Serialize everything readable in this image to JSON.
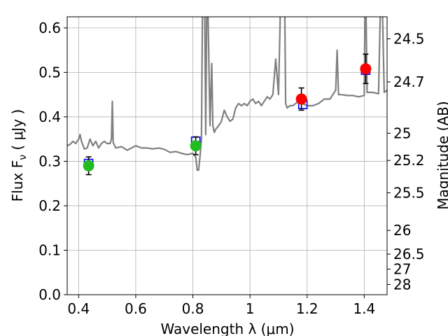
{
  "chart_data": {
    "type": "scatter",
    "xlabel": "Wavelength  λ (μm)",
    "ylabel": "Flux  F_ν  ( μJy )",
    "y2label": "Magnitude (AB)",
    "xlim": [
      0.36,
      1.48
    ],
    "ylim": [
      0.0,
      0.625
    ],
    "grid": true,
    "x_ticks": [
      0.4,
      0.6,
      0.8,
      1.0,
      1.2,
      1.4
    ],
    "x_tick_labels": [
      "0.4",
      "0.6",
      "0.8",
      "1",
      "1.2",
      "1.4"
    ],
    "y_ticks": [
      0.0,
      0.1,
      0.2,
      0.3,
      0.4,
      0.5,
      0.6
    ],
    "y_tick_labels": [
      "0.0",
      "0.1",
      "0.2",
      "0.3",
      "0.4",
      "0.5",
      "0.6"
    ],
    "y2_ticks": [
      24.5,
      24.7,
      25,
      25.2,
      25.5,
      26,
      26.5,
      27,
      28
    ],
    "y2_tick_labels": [
      "24.5",
      "24.7",
      "25",
      "25.2",
      "25.5",
      "26",
      "26.5",
      "27",
      "28"
    ],
    "model_spectrum": {
      "color": "#808080",
      "x": [
        0.36,
        0.37,
        0.38,
        0.39,
        0.4,
        0.405,
        0.41,
        0.42,
        0.43,
        0.44,
        0.45,
        0.46,
        0.47,
        0.48,
        0.49,
        0.5,
        0.51,
        0.515,
        0.518,
        0.521,
        0.53,
        0.55,
        0.57,
        0.6,
        0.62,
        0.64,
        0.66,
        0.68,
        0.7,
        0.72,
        0.74,
        0.76,
        0.78,
        0.8,
        0.81,
        0.815,
        0.82,
        0.825,
        0.83,
        0.835,
        0.84,
        0.845,
        0.85,
        0.86,
        0.866,
        0.87,
        0.875,
        0.88,
        0.89,
        0.9,
        0.91,
        0.92,
        0.93,
        0.94,
        0.95,
        0.96,
        0.97,
        0.98,
        0.99,
        1.0,
        1.01,
        1.02,
        1.03,
        1.04,
        1.05,
        1.06,
        1.07,
        1.08,
        1.09,
        1.1,
        1.11,
        1.12,
        1.125,
        1.13,
        1.14,
        1.15,
        1.16,
        1.17,
        1.18,
        1.19,
        1.2,
        1.22,
        1.24,
        1.26,
        1.28,
        1.3,
        1.305,
        1.31,
        1.32,
        1.34,
        1.36,
        1.38,
        1.4,
        1.404,
        1.41,
        1.43,
        1.45,
        1.46,
        1.47,
        1.48
      ],
      "y": [
        0.335,
        0.338,
        0.345,
        0.34,
        0.35,
        0.36,
        0.345,
        0.328,
        0.33,
        0.35,
        0.335,
        0.345,
        0.33,
        0.34,
        0.345,
        0.34,
        0.34,
        0.35,
        0.435,
        0.342,
        0.33,
        0.333,
        0.325,
        0.335,
        0.33,
        0.33,
        0.328,
        0.33,
        0.327,
        0.32,
        0.322,
        0.318,
        0.315,
        0.318,
        0.31,
        0.28,
        0.28,
        0.31,
        0.35,
        0.75,
        0.75,
        0.36,
        0.75,
        0.38,
        0.52,
        0.38,
        0.365,
        0.372,
        0.38,
        0.39,
        0.415,
        0.4,
        0.39,
        0.395,
        0.42,
        0.43,
        0.425,
        0.43,
        0.425,
        0.435,
        0.44,
        0.43,
        0.435,
        0.425,
        0.435,
        0.445,
        0.44,
        0.45,
        0.53,
        0.45,
        0.75,
        0.75,
        0.43,
        0.42,
        0.425,
        0.425,
        0.43,
        0.435,
        0.43,
        0.428,
        0.425,
        0.425,
        0.43,
        0.44,
        0.44,
        0.46,
        0.55,
        0.45,
        0.45,
        0.448,
        0.448,
        0.445,
        0.448,
        0.75,
        0.455,
        0.455,
        0.452,
        0.75,
        0.455,
        0.46
      ]
    },
    "model_points": {
      "color": "#0000ff",
      "marker": "square",
      "x": [
        0.435,
        0.81,
        1.185,
        1.405
      ],
      "y": [
        0.295,
        0.345,
        0.428,
        0.505
      ]
    },
    "observed": [
      {
        "x": 0.435,
        "y": 0.29,
        "err": 0.02,
        "color": "#22bb22"
      },
      {
        "x": 0.81,
        "y": 0.335,
        "err": 0.02,
        "color": "#22bb22"
      },
      {
        "x": 1.18,
        "y": 0.44,
        "err": 0.025,
        "color": "#ff0000"
      },
      {
        "x": 1.405,
        "y": 0.508,
        "err": 0.033,
        "color": "#ff0000"
      }
    ]
  }
}
